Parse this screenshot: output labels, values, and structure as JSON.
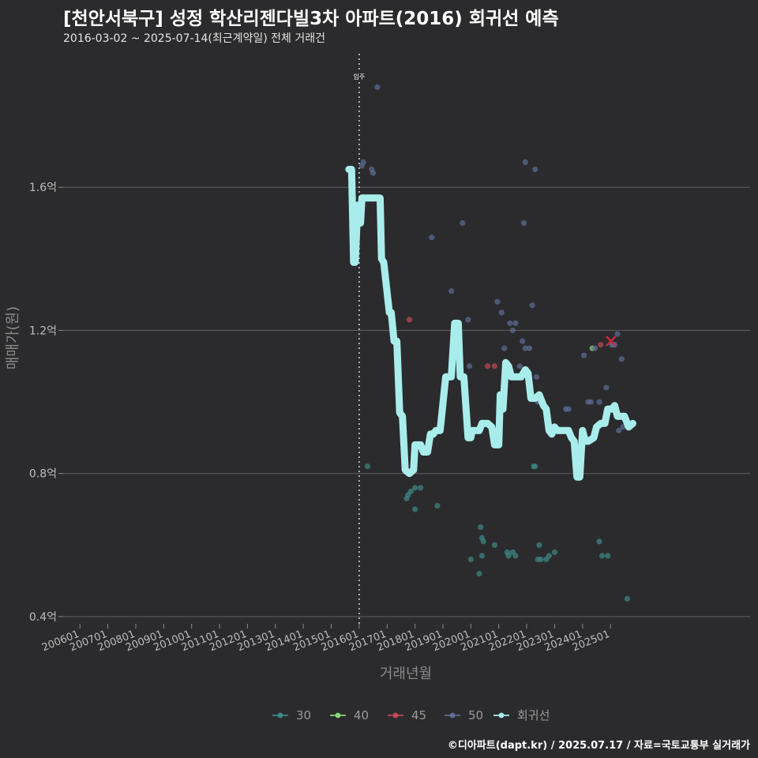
{
  "header": {
    "title": "[천안서북구] 성정 학산리젠다빌3차 아파트(2016) 회귀선 예측",
    "subtitle": "2016-03-02 ~ 2025-07-14(최근계약일) 전체 거래건"
  },
  "footer": {
    "caption": "©디아파트(dapt.kr) / 2025.07.17 / 자료=국토교통부 실거래가"
  },
  "chart_data": {
    "type": "scatter",
    "title": "[천안서북구] 성정 학산리젠다빌3차 아파트(2016) 회귀선 예측",
    "subtitle": "2016-03-02 ~ 2025-07-14(최근계약일) 전체 거래건",
    "xlabel": "거래년월",
    "ylabel": "매매가(원)",
    "x_unit": "years",
    "xlim": [
      2005.4,
      2030.0
    ],
    "ylim": [
      0.38,
      1.98
    ],
    "yticks": [
      {
        "value": 0.4,
        "label": "0.4억"
      },
      {
        "value": 0.8,
        "label": "0.8억"
      },
      {
        "value": 1.2,
        "label": "1.2억"
      },
      {
        "value": 1.6,
        "label": "1.6억"
      }
    ],
    "xticks": [
      {
        "value": 2006,
        "label": "200601"
      },
      {
        "value": 2007,
        "label": "200701"
      },
      {
        "value": 2008,
        "label": "200801"
      },
      {
        "value": 2009,
        "label": "200901"
      },
      {
        "value": 2010,
        "label": "201001"
      },
      {
        "value": 2011,
        "label": "201101"
      },
      {
        "value": 2012,
        "label": "201201"
      },
      {
        "value": 2013,
        "label": "201301"
      },
      {
        "value": 2014,
        "label": "201401"
      },
      {
        "value": 2015,
        "label": "201501"
      },
      {
        "value": 2016,
        "label": "201601"
      },
      {
        "value": 2017,
        "label": "201701"
      },
      {
        "value": 2018,
        "label": "201801"
      },
      {
        "value": 2019,
        "label": "201901"
      },
      {
        "value": 2020,
        "label": "202001"
      },
      {
        "value": 2021,
        "label": "202101"
      },
      {
        "value": 2022,
        "label": "202201"
      },
      {
        "value": 2023,
        "label": "202301"
      },
      {
        "value": 2024,
        "label": "202401"
      },
      {
        "value": 2025,
        "label": "202501"
      }
    ],
    "vline": {
      "x": 2016.0,
      "label": "입주"
    },
    "grid": true,
    "legend_position": "bottom",
    "series": [
      {
        "name": "30",
        "color": "#3e8a84",
        "points": [
          [
            2016.3,
            0.82
          ],
          [
            2017.7,
            0.73
          ],
          [
            2017.75,
            0.74
          ],
          [
            2017.85,
            0.75
          ],
          [
            2018.0,
            0.76
          ],
          [
            2018.2,
            0.76
          ],
          [
            2018.0,
            0.7
          ],
          [
            2018.8,
            0.71
          ],
          [
            2020.0,
            0.56
          ],
          [
            2020.3,
            0.52
          ],
          [
            2020.35,
            0.65
          ],
          [
            2020.4,
            0.62
          ],
          [
            2020.45,
            0.61
          ],
          [
            2020.4,
            0.57
          ],
          [
            2020.85,
            0.6
          ],
          [
            2021.3,
            0.58
          ],
          [
            2021.35,
            0.57
          ],
          [
            2021.5,
            0.58
          ],
          [
            2021.6,
            0.57
          ],
          [
            2022.25,
            0.82
          ],
          [
            2022.3,
            0.82
          ],
          [
            2022.45,
            0.6
          ],
          [
            2022.4,
            0.56
          ],
          [
            2022.5,
            0.56
          ],
          [
            2022.7,
            0.56
          ],
          [
            2022.8,
            0.57
          ],
          [
            2023.0,
            0.58
          ],
          [
            2024.6,
            0.61
          ],
          [
            2024.7,
            0.57
          ],
          [
            2024.9,
            0.57
          ],
          [
            2025.6,
            0.45
          ]
        ]
      },
      {
        "name": "40",
        "color": "#86d97a",
        "points": [
          [
            2024.35,
            1.15
          ]
        ]
      },
      {
        "name": "45",
        "color": "#c24a56",
        "points": [
          [
            2017.8,
            1.23
          ],
          [
            2020.6,
            1.1
          ],
          [
            2020.85,
            1.1
          ],
          [
            2024.65,
            1.16
          ]
        ]
      },
      {
        "name": "50",
        "color": "#5d6e96",
        "points": [
          [
            2015.8,
            1.57
          ],
          [
            2016.1,
            1.66
          ],
          [
            2016.15,
            1.67
          ],
          [
            2016.45,
            1.65
          ],
          [
            2016.5,
            1.64
          ],
          [
            2016.65,
            1.88
          ],
          [
            2018.6,
            1.46
          ],
          [
            2019.3,
            1.31
          ],
          [
            2019.7,
            1.5
          ],
          [
            2019.9,
            1.23
          ],
          [
            2019.95,
            1.1
          ],
          [
            2020.95,
            1.28
          ],
          [
            2021.1,
            1.25
          ],
          [
            2021.2,
            1.15
          ],
          [
            2021.4,
            1.22
          ],
          [
            2021.5,
            1.2
          ],
          [
            2021.6,
            1.22
          ],
          [
            2021.75,
            1.1
          ],
          [
            2021.85,
            1.17
          ],
          [
            2021.95,
            1.15
          ],
          [
            2021.9,
            1.5
          ],
          [
            2021.95,
            1.67
          ],
          [
            2022.1,
            1.15
          ],
          [
            2022.2,
            1.27
          ],
          [
            2022.3,
            1.65
          ],
          [
            2022.35,
            1.07
          ],
          [
            2022.4,
            1.0
          ],
          [
            2022.45,
            1.0
          ],
          [
            2022.5,
            1.0
          ],
          [
            2023.4,
            0.98
          ],
          [
            2023.5,
            0.98
          ],
          [
            2024.05,
            1.13
          ],
          [
            2024.2,
            1.0
          ],
          [
            2024.3,
            1.0
          ],
          [
            2024.45,
            1.15
          ],
          [
            2024.6,
            1.0
          ],
          [
            2024.75,
            0.94
          ],
          [
            2024.85,
            1.04
          ],
          [
            2025.05,
            1.16
          ],
          [
            2025.1,
            1.16
          ],
          [
            2025.15,
            1.16
          ],
          [
            2025.25,
            1.19
          ],
          [
            2025.4,
            1.12
          ],
          [
            2025.45,
            0.93
          ],
          [
            2025.3,
            0.92
          ]
        ]
      },
      {
        "name": "회귀선",
        "color": "#a8edeb",
        "points": [
          [
            2015.63,
            1.65
          ],
          [
            2015.73,
            1.65
          ],
          [
            2015.8,
            1.39
          ],
          [
            2015.86,
            1.39
          ],
          [
            2015.95,
            1.55
          ],
          [
            2016.05,
            1.5
          ],
          [
            2016.1,
            1.57
          ],
          [
            2016.22,
            1.57
          ],
          [
            2016.6,
            1.57
          ],
          [
            2016.75,
            1.57
          ],
          [
            2016.8,
            1.4
          ],
          [
            2016.88,
            1.39
          ],
          [
            2017.08,
            1.25
          ],
          [
            2017.15,
            1.25
          ],
          [
            2017.25,
            1.17
          ],
          [
            2017.35,
            1.17
          ],
          [
            2017.45,
            0.97
          ],
          [
            2017.55,
            0.96
          ],
          [
            2017.65,
            0.81
          ],
          [
            2017.8,
            0.8
          ],
          [
            2017.95,
            0.81
          ],
          [
            2018.0,
            0.88
          ],
          [
            2018.2,
            0.88
          ],
          [
            2018.3,
            0.86
          ],
          [
            2018.45,
            0.86
          ],
          [
            2018.55,
            0.91
          ],
          [
            2018.65,
            0.91
          ],
          [
            2018.75,
            0.92
          ],
          [
            2018.9,
            0.92
          ],
          [
            2019.1,
            1.07
          ],
          [
            2019.3,
            1.07
          ],
          [
            2019.42,
            1.22
          ],
          [
            2019.55,
            1.22
          ],
          [
            2019.62,
            1.07
          ],
          [
            2019.75,
            1.07
          ],
          [
            2019.9,
            0.9
          ],
          [
            2020.0,
            0.9
          ],
          [
            2020.05,
            0.92
          ],
          [
            2020.3,
            0.92
          ],
          [
            2020.4,
            0.94
          ],
          [
            2020.6,
            0.94
          ],
          [
            2020.75,
            0.93
          ],
          [
            2020.85,
            0.88
          ],
          [
            2021.0,
            0.88
          ],
          [
            2021.05,
            1.02
          ],
          [
            2021.15,
            0.98
          ],
          [
            2021.25,
            1.11
          ],
          [
            2021.35,
            1.1
          ],
          [
            2021.45,
            1.07
          ],
          [
            2021.65,
            1.07
          ],
          [
            2021.8,
            1.07
          ],
          [
            2021.95,
            1.09
          ],
          [
            2022.05,
            1.08
          ],
          [
            2022.15,
            1.01
          ],
          [
            2022.3,
            1.01
          ],
          [
            2022.45,
            1.02
          ],
          [
            2022.6,
            0.99
          ],
          [
            2022.7,
            0.98
          ],
          [
            2022.8,
            0.92
          ],
          [
            2022.9,
            0.91
          ],
          [
            2023.0,
            0.93
          ],
          [
            2023.1,
            0.92
          ],
          [
            2023.3,
            0.92
          ],
          [
            2023.5,
            0.92
          ],
          [
            2023.6,
            0.9
          ],
          [
            2023.7,
            0.89
          ],
          [
            2023.8,
            0.79
          ],
          [
            2023.9,
            0.79
          ],
          [
            2024.0,
            0.92
          ],
          [
            2024.1,
            0.89
          ],
          [
            2024.2,
            0.89
          ],
          [
            2024.4,
            0.9
          ],
          [
            2024.5,
            0.93
          ],
          [
            2024.65,
            0.94
          ],
          [
            2024.8,
            0.94
          ],
          [
            2024.9,
            0.98
          ],
          [
            2025.05,
            0.98
          ],
          [
            2025.15,
            0.99
          ],
          [
            2025.25,
            0.96
          ],
          [
            2025.35,
            0.96
          ],
          [
            2025.5,
            0.96
          ],
          [
            2025.65,
            0.93
          ],
          [
            2025.8,
            0.94
          ]
        ]
      }
    ],
    "highlight_marker": {
      "shape": "x",
      "x": 2025.02,
      "y": 1.17,
      "color": "#c92a3a"
    }
  }
}
